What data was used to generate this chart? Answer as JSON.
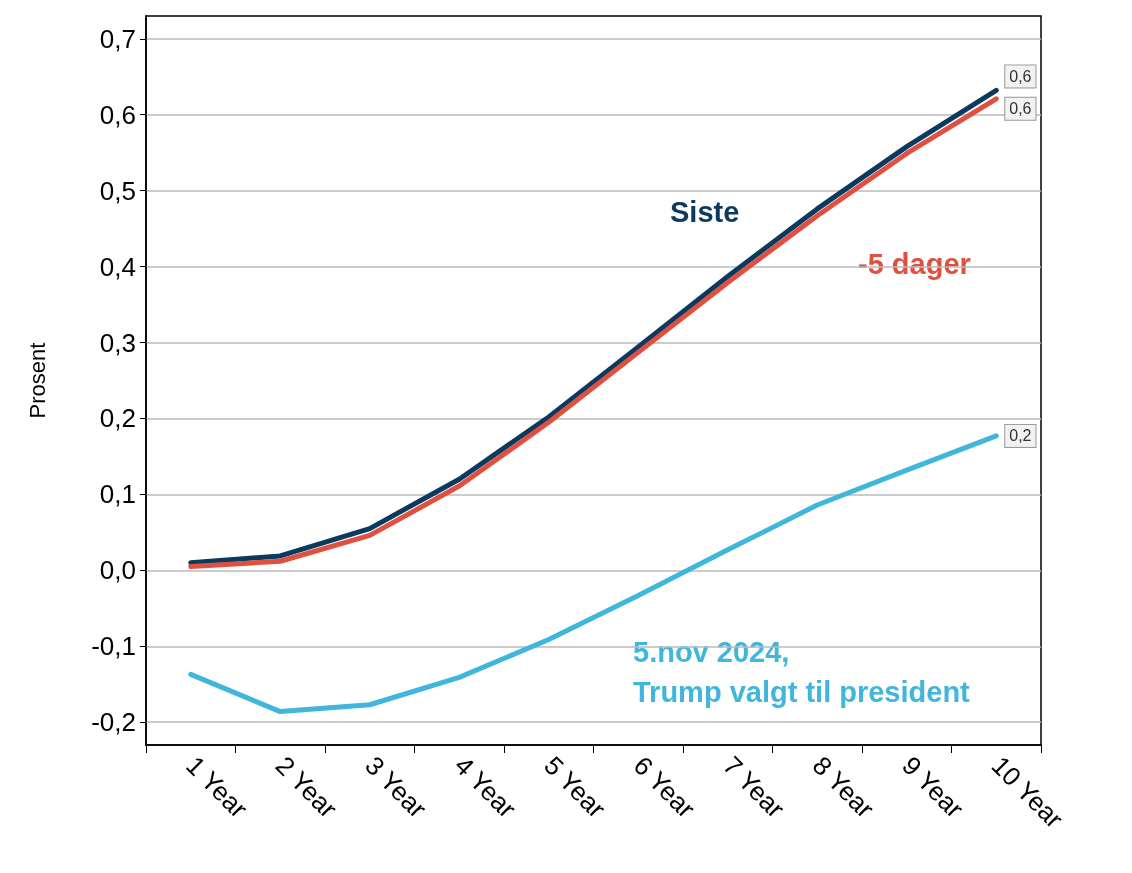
{
  "chart_data": {
    "type": "line",
    "ylabel": "Prosent",
    "categories": [
      "1 Year",
      "2 Year",
      "3 Year",
      "4 Year",
      "5 Year",
      "6 Year",
      "7 Year",
      "8 Year",
      "9 Year",
      "10 Year"
    ],
    "series": [
      {
        "name": "Siste",
        "color": "#0b3a5e",
        "values": [
          0.01,
          0.019,
          0.055,
          0.12,
          0.202,
          0.294,
          0.387,
          0.476,
          0.558,
          0.632
        ],
        "value_labels": [
          null,
          null,
          null,
          null,
          null,
          null,
          null,
          null,
          null,
          "0,6"
        ]
      },
      {
        "name": "-5 dager",
        "color": "#e05040",
        "values": [
          0.005,
          0.012,
          0.046,
          0.111,
          0.195,
          0.287,
          0.379,
          0.467,
          0.549,
          0.621
        ],
        "value_labels": [
          null,
          null,
          null,
          null,
          null,
          null,
          null,
          null,
          null,
          "0,6"
        ]
      },
      {
        "name": "5.nov 2024,\nTrump valgt til president",
        "color": "#41b6dc",
        "values": [
          -0.137,
          -0.186,
          -0.177,
          -0.141,
          -0.091,
          -0.033,
          0.027,
          0.086,
          0.132,
          0.177
        ],
        "value_labels": [
          null,
          null,
          null,
          null,
          null,
          null,
          null,
          null,
          null,
          "0,2"
        ]
      }
    ],
    "ylim": [
      -0.23,
      0.73
    ],
    "yticks": [
      {
        "value": -0.2,
        "label": "-0,2"
      },
      {
        "value": -0.1,
        "label": "-0,1"
      },
      {
        "value": 0,
        "label": "0,0"
      },
      {
        "value": 0.1,
        "label": "0,1"
      },
      {
        "value": 0.2,
        "label": "0,2"
      },
      {
        "value": 0.3,
        "label": "0,3"
      },
      {
        "value": 0.4,
        "label": "0,4"
      },
      {
        "value": 0.5,
        "label": "0,5"
      },
      {
        "value": 0.6,
        "label": "0,6"
      },
      {
        "value": 0.7,
        "label": "0,7"
      }
    ],
    "grid": "y",
    "legend": false,
    "marker": "none",
    "line_style": "solid"
  }
}
